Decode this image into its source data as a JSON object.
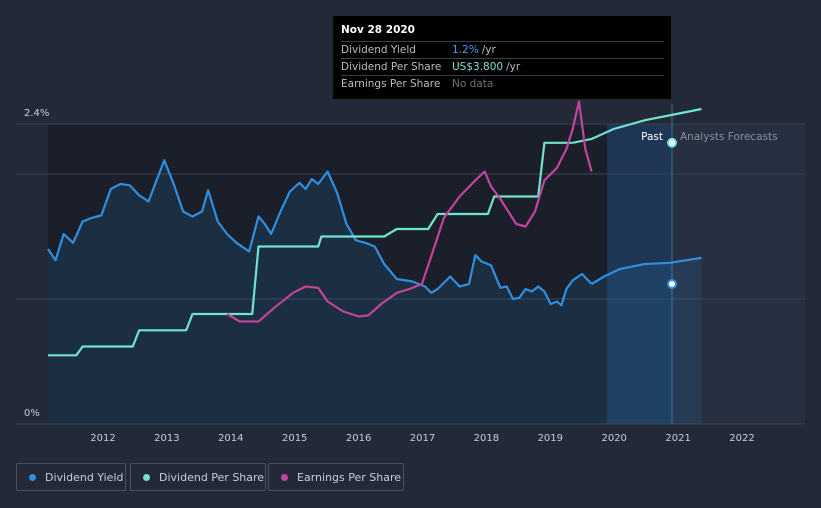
{
  "chart_data": {
    "type": "line",
    "x_ticks": [
      "2012",
      "2013",
      "2014",
      "2015",
      "2016",
      "2017",
      "2018",
      "2019",
      "2020",
      "2021",
      "2022"
    ],
    "y_ticks": [
      "2.4%",
      "0%"
    ],
    "ylim": [
      0,
      2.4
    ],
    "xlim": [
      2011.0,
      2023.0
    ],
    "region_labels": {
      "past": "Past",
      "forecast": "Analysts Forecasts"
    },
    "series": [
      {
        "name": "Dividend Yield",
        "color": "#2e8fe0",
        "axis": "percent",
        "points": [
          [
            2011.0,
            1.4
          ],
          [
            2011.12,
            1.31
          ],
          [
            2011.25,
            1.52
          ],
          [
            2011.4,
            1.45
          ],
          [
            2011.55,
            1.62
          ],
          [
            2011.7,
            1.65
          ],
          [
            2011.85,
            1.67
          ],
          [
            2012.0,
            1.88
          ],
          [
            2012.15,
            1.92
          ],
          [
            2012.3,
            1.91
          ],
          [
            2012.45,
            1.83
          ],
          [
            2012.6,
            1.78
          ],
          [
            2012.75,
            1.98
          ],
          [
            2012.85,
            2.11
          ],
          [
            2013.0,
            1.92
          ],
          [
            2013.15,
            1.7
          ],
          [
            2013.3,
            1.66
          ],
          [
            2013.45,
            1.7
          ],
          [
            2013.55,
            1.87
          ],
          [
            2013.7,
            1.62
          ],
          [
            2013.85,
            1.52
          ],
          [
            2014.0,
            1.45
          ],
          [
            2014.2,
            1.38
          ],
          [
            2014.35,
            1.66
          ],
          [
            2014.45,
            1.6
          ],
          [
            2014.55,
            1.52
          ],
          [
            2014.7,
            1.7
          ],
          [
            2014.85,
            1.86
          ],
          [
            2015.0,
            1.93
          ],
          [
            2015.1,
            1.88
          ],
          [
            2015.2,
            1.96
          ],
          [
            2015.3,
            1.92
          ],
          [
            2015.45,
            2.02
          ],
          [
            2015.6,
            1.85
          ],
          [
            2015.75,
            1.6
          ],
          [
            2015.9,
            1.47
          ],
          [
            2016.05,
            1.45
          ],
          [
            2016.2,
            1.42
          ],
          [
            2016.35,
            1.28
          ],
          [
            2016.55,
            1.16
          ],
          [
            2016.8,
            1.14
          ],
          [
            2017.0,
            1.1
          ],
          [
            2017.1,
            1.05
          ],
          [
            2017.2,
            1.08
          ],
          [
            2017.4,
            1.18
          ],
          [
            2017.55,
            1.1
          ],
          [
            2017.7,
            1.12
          ],
          [
            2017.8,
            1.35
          ],
          [
            2017.9,
            1.3
          ],
          [
            2018.05,
            1.27
          ],
          [
            2018.2,
            1.09
          ],
          [
            2018.3,
            1.1
          ],
          [
            2018.4,
            1.0
          ],
          [
            2018.5,
            1.01
          ],
          [
            2018.6,
            1.08
          ],
          [
            2018.7,
            1.06
          ],
          [
            2018.8,
            1.1
          ],
          [
            2018.9,
            1.06
          ],
          [
            2019.0,
            0.96
          ],
          [
            2019.1,
            0.98
          ],
          [
            2019.17,
            0.95
          ],
          [
            2019.25,
            1.08
          ],
          [
            2019.35,
            1.15
          ],
          [
            2019.5,
            1.2
          ],
          [
            2019.65,
            1.12
          ]
        ],
        "forecast_points": [
          [
            2019.65,
            1.12
          ],
          [
            2019.85,
            1.18
          ],
          [
            2020.1,
            1.24
          ],
          [
            2020.5,
            1.28
          ],
          [
            2020.9,
            1.29
          ],
          [
            2021.4,
            1.33
          ]
        ]
      },
      {
        "name": "Dividend Per Share",
        "color": "#6fe3d1",
        "axis": "dps",
        "points": [
          [
            2011.0,
            0.55
          ],
          [
            2011.45,
            0.55
          ],
          [
            2011.55,
            0.62
          ],
          [
            2012.35,
            0.62
          ],
          [
            2012.45,
            0.75
          ],
          [
            2013.2,
            0.75
          ],
          [
            2013.3,
            0.88
          ],
          [
            2014.25,
            0.88
          ],
          [
            2014.35,
            1.42
          ],
          [
            2015.3,
            1.42
          ],
          [
            2015.35,
            1.5
          ],
          [
            2016.35,
            1.5
          ],
          [
            2016.55,
            1.56
          ],
          [
            2017.05,
            1.56
          ],
          [
            2017.2,
            1.68
          ],
          [
            2018.0,
            1.68
          ],
          [
            2018.1,
            1.82
          ],
          [
            2018.8,
            1.82
          ],
          [
            2018.9,
            2.25
          ],
          [
            2019.35,
            2.25
          ]
        ],
        "forecast_points": [
          [
            2019.35,
            2.25
          ],
          [
            2019.65,
            2.28
          ],
          [
            2020.0,
            2.36
          ],
          [
            2020.5,
            2.43
          ],
          [
            2021.0,
            2.48
          ],
          [
            2021.4,
            2.52
          ]
        ]
      },
      {
        "name": "Earnings Per Share",
        "color": "#c2459a",
        "axis": "eps",
        "points": [
          [
            2013.85,
            0.88
          ],
          [
            2014.05,
            0.82
          ],
          [
            2014.35,
            0.82
          ],
          [
            2014.6,
            0.93
          ],
          [
            2014.9,
            1.05
          ],
          [
            2015.1,
            1.1
          ],
          [
            2015.3,
            1.09
          ],
          [
            2015.45,
            0.98
          ],
          [
            2015.7,
            0.9
          ],
          [
            2015.95,
            0.86
          ],
          [
            2016.1,
            0.87
          ],
          [
            2016.3,
            0.96
          ],
          [
            2016.55,
            1.05
          ],
          [
            2016.75,
            1.08
          ],
          [
            2016.95,
            1.12
          ],
          [
            2017.15,
            1.42
          ],
          [
            2017.3,
            1.65
          ],
          [
            2017.55,
            1.82
          ],
          [
            2017.8,
            1.95
          ],
          [
            2017.95,
            2.02
          ],
          [
            2018.05,
            1.9
          ],
          [
            2018.2,
            1.8
          ],
          [
            2018.3,
            1.72
          ],
          [
            2018.45,
            1.6
          ],
          [
            2018.6,
            1.58
          ],
          [
            2018.75,
            1.7
          ],
          [
            2018.9,
            1.95
          ],
          [
            2019.1,
            2.05
          ],
          [
            2019.25,
            2.2
          ],
          [
            2019.35,
            2.36
          ],
          [
            2019.45,
            2.58
          ],
          [
            2019.55,
            2.2
          ],
          [
            2019.65,
            2.02
          ]
        ]
      }
    ],
    "markers": [
      {
        "series": "Dividend Yield",
        "x": 2020.93,
        "value": "1.2%"
      },
      {
        "series": "Dividend Per Share",
        "x": 2020.93,
        "value": "US$3.800"
      }
    ],
    "legend": [
      "Dividend Yield",
      "Dividend Per Share",
      "Earnings Per Share"
    ],
    "legend_position": "bottom-left",
    "grid": true
  },
  "tooltip": {
    "date": "Nov 28 2020",
    "rows": [
      {
        "label": "Dividend Yield",
        "value": "1.2%",
        "unit": "/yr"
      },
      {
        "label": "Dividend Per Share",
        "value": "US$3.800",
        "unit": "/yr"
      },
      {
        "label": "Earnings Per Share",
        "value": "No data",
        "unit": ""
      }
    ]
  },
  "legend_labels": {
    "dividend_yield": "Dividend Yield",
    "dividend_per_share": "Dividend Per Share",
    "earnings_per_share": "Earnings Per Share"
  },
  "colors": {
    "background": "#232936",
    "past_area": "#1a1f2a",
    "forecast_band": "#1e3a5f",
    "dividend_yield": "#2e8fe0",
    "dividend_per_share": "#6fe3d1",
    "earnings_per_share": "#c2459a"
  }
}
